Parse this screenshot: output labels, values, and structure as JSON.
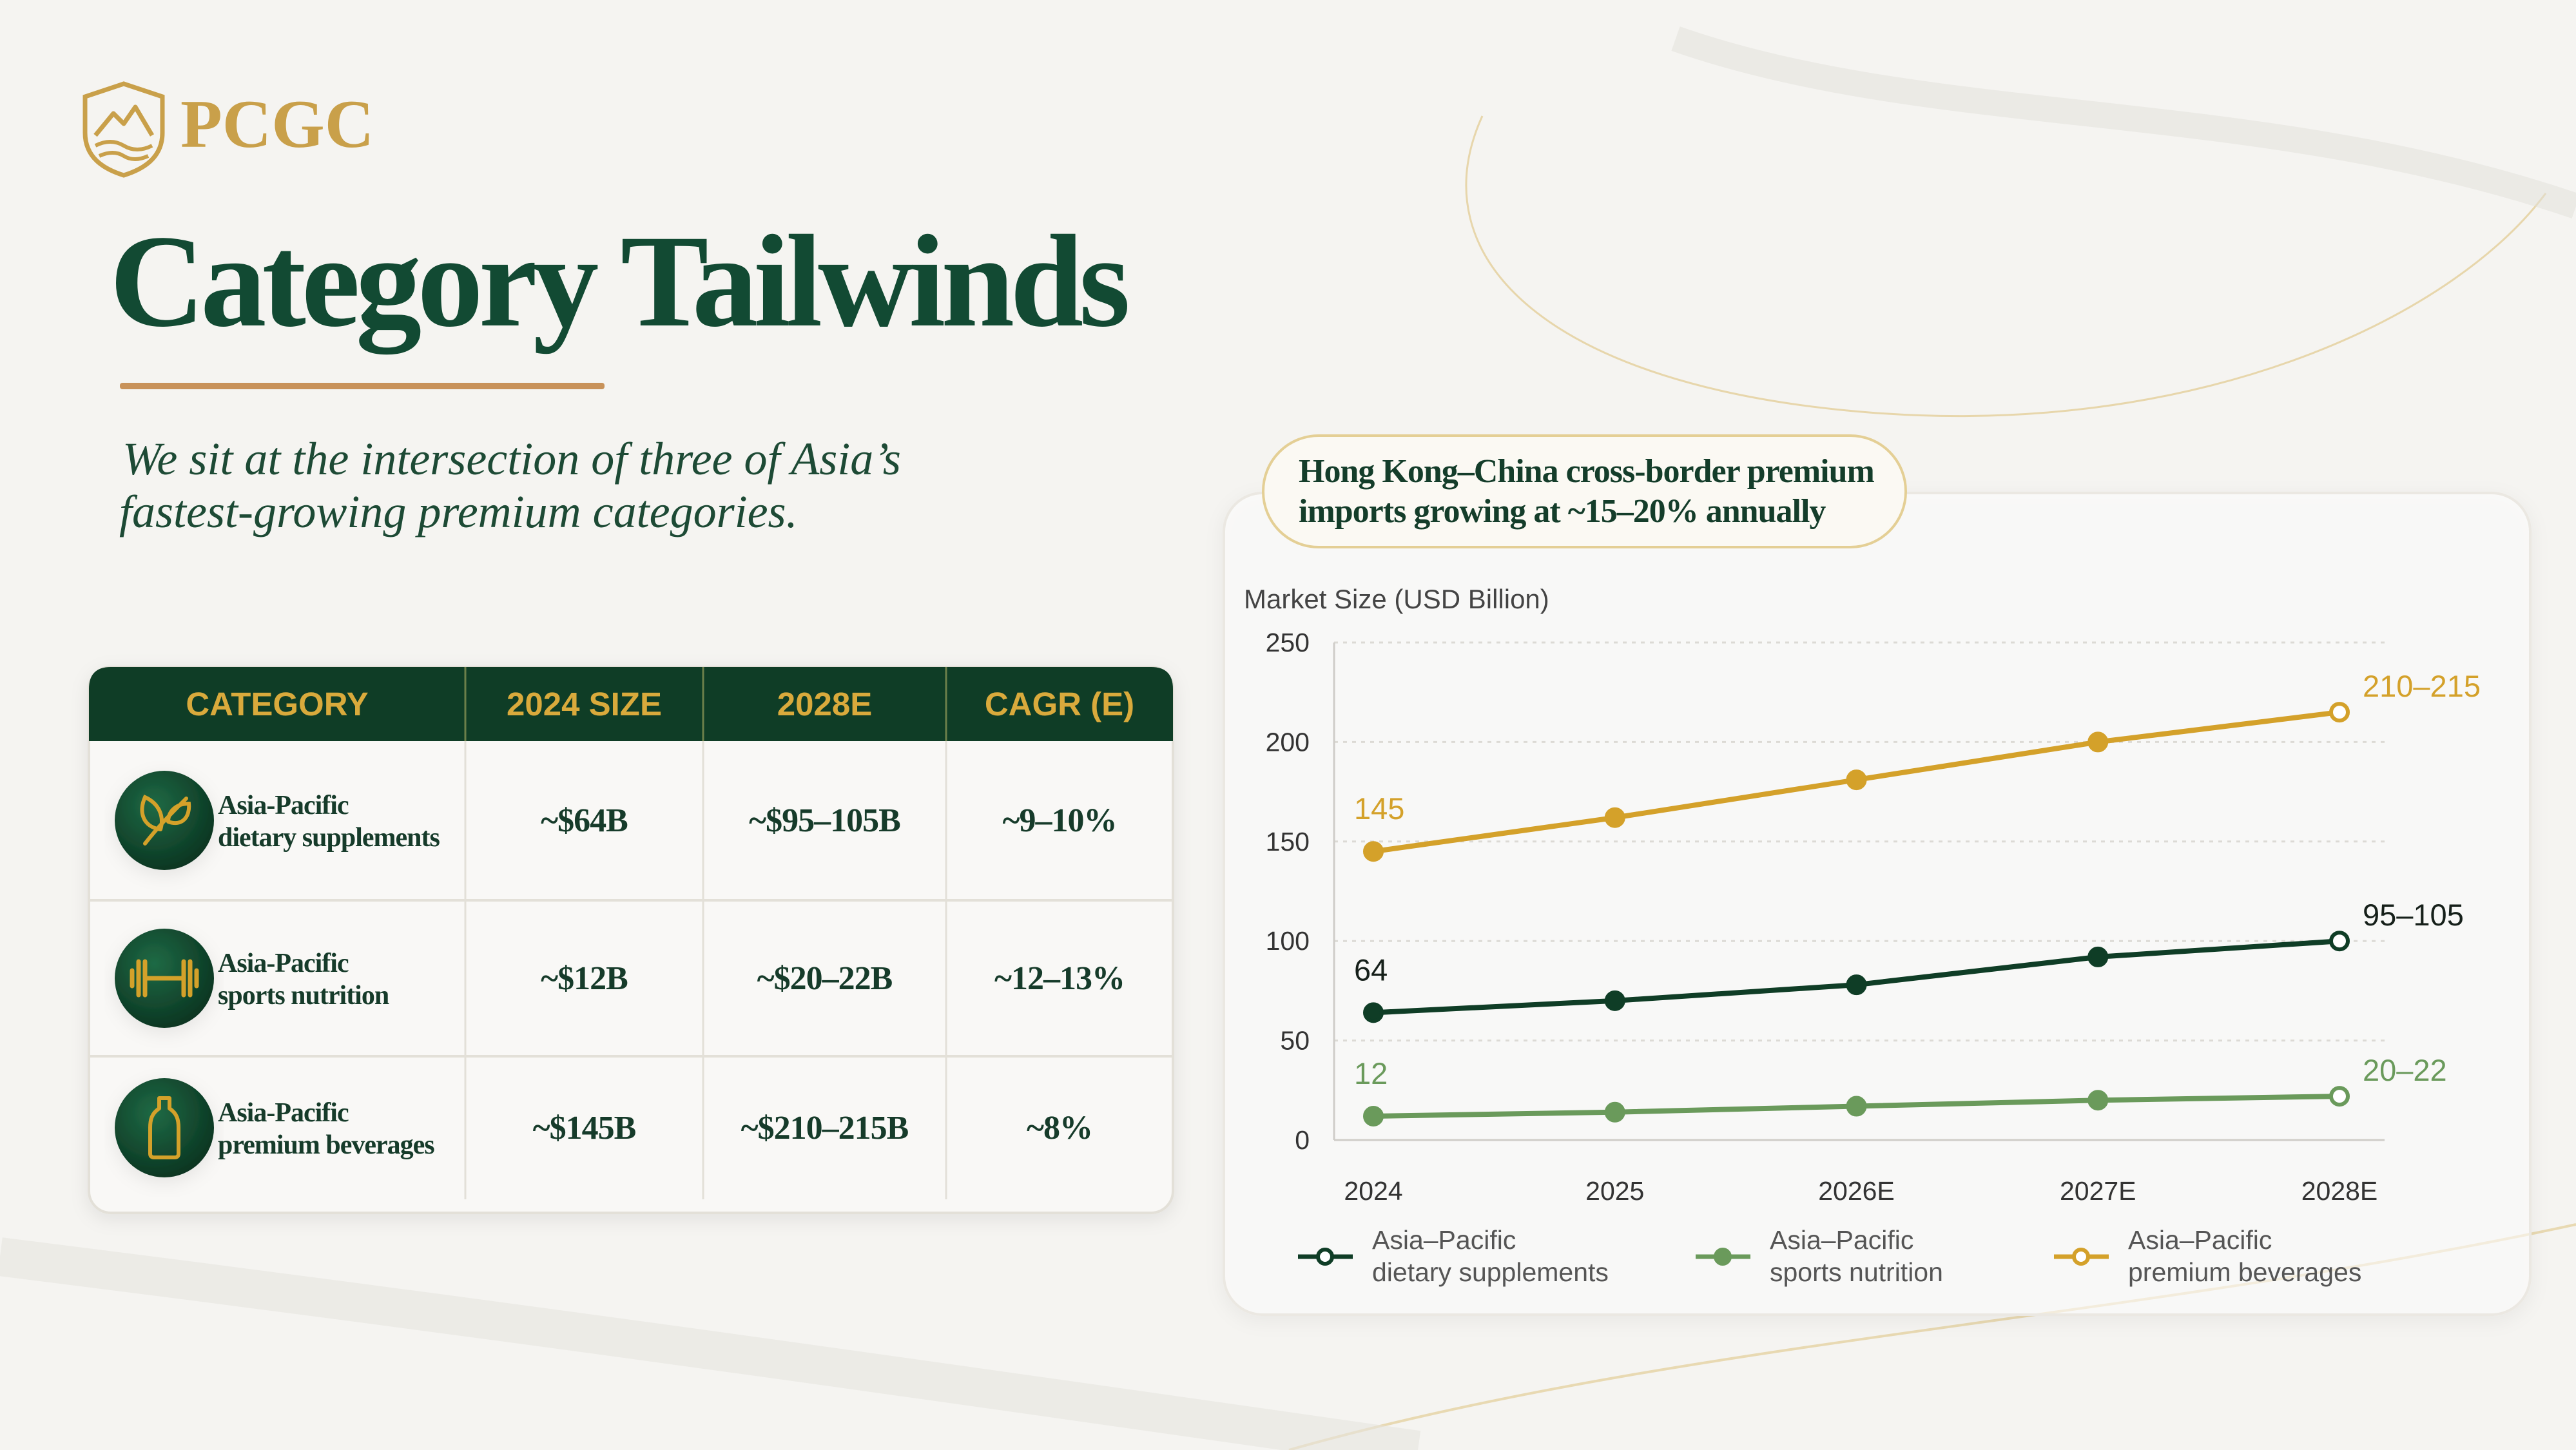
{
  "logo": {
    "text": "PCGC"
  },
  "header": {
    "title": "Category Tailwinds",
    "subtitle": [
      "We sit at the intersection of three of Asia’s",
      "fastest-growing premium categories."
    ]
  },
  "table": {
    "columns": [
      "CATEGORY",
      "2024 SIZE",
      "2028E",
      "CAGR (E)"
    ],
    "rows": [
      [
        "Asia-Pacific dietary supplements",
        "~$64B",
        "~$95–105B",
        "~9–10%"
      ],
      [
        "Asia-Pacific sports nutrition",
        "~$12B",
        "~$20–22B",
        "~12–13%"
      ],
      [
        "Asia-Pacific premium beverages",
        "~$145B",
        "~$210–215B",
        "~8%"
      ]
    ]
  },
  "callout": [
    "Hong Kong–China cross-border premium",
    "imports growing at ~15–20% annually"
  ],
  "chart_data": {
    "type": "line",
    "y_label": "Market Size (USD Billion)",
    "categories": [
      "2024",
      "2025",
      "2026E",
      "2027E",
      "2028E"
    ],
    "series": [
      {
        "name": "Asia–Pacific dietary supplements",
        "color": "#0f3d26",
        "values": [
          64,
          70,
          78,
          92,
          100
        ],
        "value_labels": [
          "64",
          null,
          null,
          null,
          "95–105"
        ]
      },
      {
        "name": "Asia–Pacific sports nutrition",
        "color": "#6a9a5b",
        "values": [
          12,
          14,
          17,
          20,
          22
        ],
        "value_labels": [
          "12",
          null,
          null,
          null,
          "20–22"
        ]
      },
      {
        "name": "Asia–Pacific premium beverages",
        "color": "#d4a12a",
        "values": [
          145,
          162,
          181,
          200,
          215
        ],
        "value_labels": [
          "145",
          null,
          null,
          null,
          "210–215"
        ]
      }
    ],
    "ylim": [
      0,
      250
    ],
    "yticks": [
      0,
      50,
      100,
      150,
      200,
      250
    ],
    "grid": true
  }
}
